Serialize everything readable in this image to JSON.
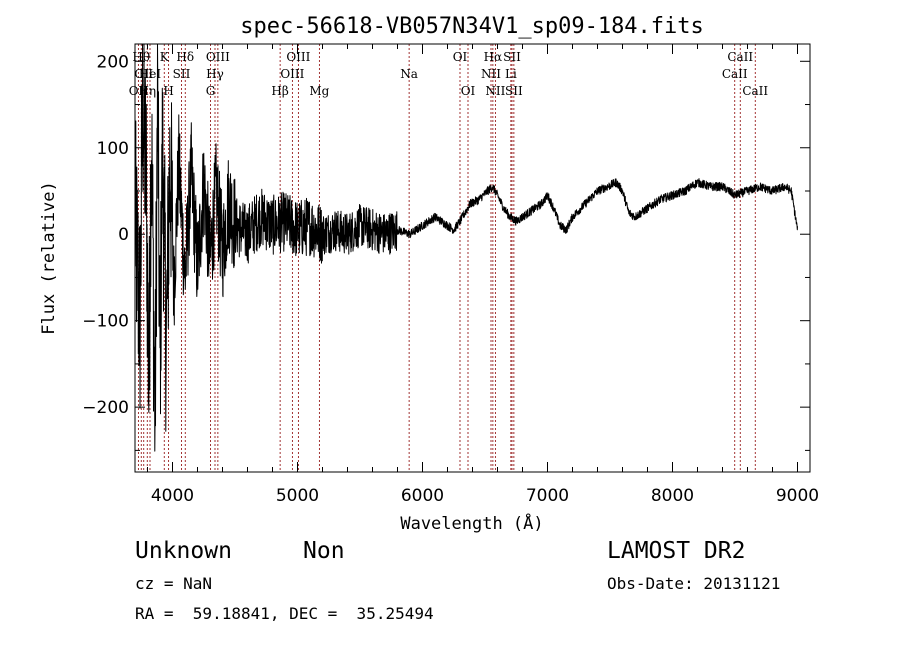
{
  "chart_data": {
    "type": "line",
    "title": "spec-56618-VB057N34V1_sp09-184.fits",
    "xlabel": "Wavelength (Å)",
    "ylabel": "Flux (relative)",
    "xlim": [
      3700,
      9100
    ],
    "ylim": [
      -275,
      220
    ],
    "xticks": [
      {
        "v": 4000,
        "label": "4000"
      },
      {
        "v": 5000,
        "label": "5000"
      },
      {
        "v": 6000,
        "label": "6000"
      },
      {
        "v": 7000,
        "label": "7000"
      },
      {
        "v": 8000,
        "label": "8000"
      },
      {
        "v": 9000,
        "label": "9000"
      }
    ],
    "yticks": [
      {
        "v": -200,
        "label": "−200"
      },
      {
        "v": -100,
        "label": "−100"
      },
      {
        "v": 0,
        "label": "0"
      },
      {
        "v": 100,
        "label": "100"
      },
      {
        "v": 200,
        "label": "200"
      }
    ],
    "grid": false,
    "line_color": "#000000",
    "marker_color": "#8b0000",
    "spectral_lines": [
      {
        "wave": 3727,
        "label": "OII",
        "row": 3
      },
      {
        "wave": 3750,
        "label": "Hθ",
        "row": 1
      },
      {
        "wave": 3770,
        "label": "CII",
        "row": 2
      },
      {
        "wave": 3798,
        "label": "Hη",
        "row": 3
      },
      {
        "wave": 3820,
        "label": "HeI",
        "row": 2
      },
      {
        "wave": 3934,
        "label": "K",
        "row": 1
      },
      {
        "wave": 3969,
        "label": "H",
        "row": 3
      },
      {
        "wave": 4072,
        "label": "SII",
        "row": 2
      },
      {
        "wave": 4102,
        "label": "Hδ",
        "row": 1
      },
      {
        "wave": 4304,
        "label": "G",
        "row": 3
      },
      {
        "wave": 4340,
        "label": "Hγ",
        "row": 2
      },
      {
        "wave": 4363,
        "label": "OIII",
        "row": 1
      },
      {
        "wave": 4861,
        "label": "Hβ",
        "row": 3
      },
      {
        "wave": 4959,
        "label": "OIII",
        "row": 2
      },
      {
        "wave": 5007,
        "label": "OIII",
        "row": 1
      },
      {
        "wave": 5175,
        "label": "Mg",
        "row": 3
      },
      {
        "wave": 5893,
        "label": "Na",
        "row": 2
      },
      {
        "wave": 6300,
        "label": "OI",
        "row": 1
      },
      {
        "wave": 6364,
        "label": "OI",
        "row": 3
      },
      {
        "wave": 6548,
        "label": "NII",
        "row": 2
      },
      {
        "wave": 6563,
        "label": "Hα",
        "row": 1
      },
      {
        "wave": 6583,
        "label": "NII",
        "row": 3
      },
      {
        "wave": 6707,
        "label": "Li",
        "row": 2
      },
      {
        "wave": 6716,
        "label": "SII",
        "row": 1
      },
      {
        "wave": 6731,
        "label": "SII",
        "row": 3
      },
      {
        "wave": 8498,
        "label": "CaII",
        "row": 2
      },
      {
        "wave": 8542,
        "label": "CaII",
        "row": 1
      },
      {
        "wave": 8662,
        "label": "CaII",
        "row": 3
      }
    ],
    "spectrum_anchors": [
      [
        3700,
        20
      ],
      [
        3740,
        -100
      ],
      [
        3760,
        150
      ],
      [
        3790,
        60
      ],
      [
        3810,
        -180
      ],
      [
        3830,
        130
      ],
      [
        3860,
        -220
      ],
      [
        3880,
        160
      ],
      [
        3900,
        -150
      ],
      [
        3920,
        100
      ],
      [
        3950,
        -130
      ],
      [
        3980,
        90
      ],
      [
        4010,
        -60
      ],
      [
        4050,
        80
      ],
      [
        4100,
        -50
      ],
      [
        4150,
        70
      ],
      [
        4200,
        -40
      ],
      [
        4250,
        60
      ],
      [
        4300,
        -30
      ],
      [
        4350,
        50
      ],
      [
        4400,
        -20
      ],
      [
        4450,
        40
      ],
      [
        4500,
        10
      ],
      [
        4600,
        0
      ],
      [
        4700,
        20
      ],
      [
        4800,
        10
      ],
      [
        4900,
        15
      ],
      [
        5000,
        5
      ],
      [
        5100,
        10
      ],
      [
        5200,
        0
      ],
      [
        5300,
        5
      ],
      [
        5400,
        0
      ],
      [
        5500,
        10
      ],
      [
        5600,
        5
      ],
      [
        5700,
        0
      ],
      [
        5800,
        5
      ],
      [
        5900,
        0
      ],
      [
        6000,
        10
      ],
      [
        6100,
        20
      ],
      [
        6200,
        10
      ],
      [
        6250,
        5
      ],
      [
        6300,
        15
      ],
      [
        6380,
        35
      ],
      [
        6450,
        40
      ],
      [
        6520,
        50
      ],
      [
        6560,
        55
      ],
      [
        6600,
        45
      ],
      [
        6650,
        30
      ],
      [
        6700,
        20
      ],
      [
        6750,
        15
      ],
      [
        6850,
        25
      ],
      [
        6950,
        35
      ],
      [
        7000,
        45
      ],
      [
        7050,
        30
      ],
      [
        7100,
        10
      ],
      [
        7150,
        5
      ],
      [
        7200,
        20
      ],
      [
        7300,
        35
      ],
      [
        7400,
        50
      ],
      [
        7480,
        55
      ],
      [
        7550,
        60
      ],
      [
        7600,
        50
      ],
      [
        7650,
        25
      ],
      [
        7700,
        20
      ],
      [
        7800,
        30
      ],
      [
        7900,
        40
      ],
      [
        8000,
        45
      ],
      [
        8100,
        50
      ],
      [
        8200,
        60
      ],
      [
        8300,
        55
      ],
      [
        8400,
        55
      ],
      [
        8500,
        45
      ],
      [
        8600,
        50
      ],
      [
        8700,
        55
      ],
      [
        8800,
        50
      ],
      [
        8900,
        55
      ],
      [
        8950,
        50
      ],
      [
        9000,
        5
      ]
    ]
  },
  "info": {
    "object_class": "Unknown",
    "object_subclass": "Non",
    "survey": "LAMOST DR2",
    "cz": "cz = NaN",
    "obs_date": "Obs-Date: 20131121",
    "coords": "RA =  59.18841, DEC =  35.25494"
  }
}
